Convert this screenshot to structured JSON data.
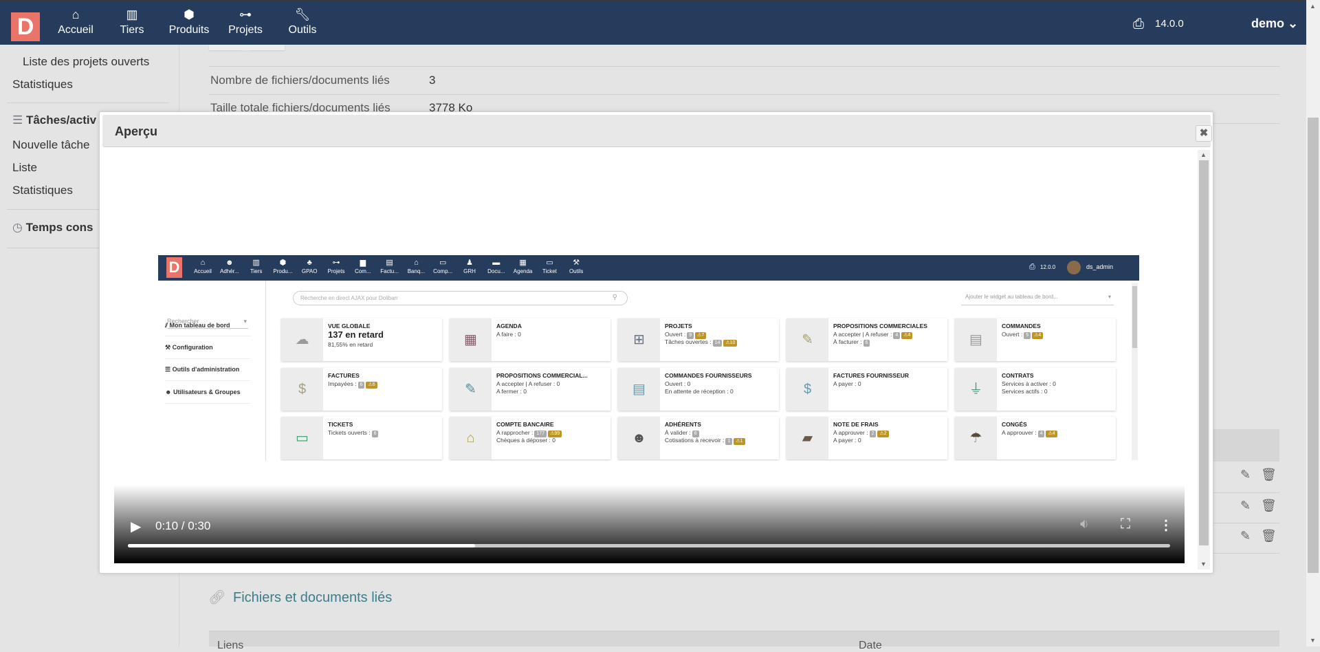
{
  "topbar": {
    "logo": "D",
    "nav": [
      {
        "label": "Accueil",
        "icon": "home-icon"
      },
      {
        "label": "Tiers",
        "icon": "building-icon"
      },
      {
        "label": "Produits",
        "icon": "cube-icon"
      },
      {
        "label": "Projets",
        "icon": "sitemap-icon",
        "active": true
      },
      {
        "label": "Outils",
        "icon": "wrench-icon"
      }
    ],
    "version": "14.0.0",
    "user": "demo",
    "user_caret": "⌄"
  },
  "sidebar": {
    "items": [
      {
        "label": "Liste des projets ouverts"
      },
      {
        "label": "Statistiques"
      },
      {
        "label": "Tâches/activ",
        "heading": true
      },
      {
        "label": "Nouvelle tâche"
      },
      {
        "label": "Liste"
      },
      {
        "label": "Statistiques"
      },
      {
        "label": "Temps cons",
        "heading": true
      }
    ]
  },
  "main": {
    "fields": [
      {
        "label": "Nombre de fichiers/documents liés",
        "value": "3"
      },
      {
        "label": "Taille totale fichiers/documents liés",
        "value": "3778 Ko"
      }
    ],
    "linked_section_title": "Fichiers et documents liés",
    "table_headers": [
      "Liens",
      "Date"
    ]
  },
  "modal": {
    "title": "Aperçu",
    "close_icon": "✖",
    "video": {
      "current_time": "0:10",
      "duration": "0:30",
      "time_display": "0:10 / 0:30",
      "progress_fraction": 0.333
    },
    "frame": {
      "logo": "D",
      "nav": [
        "Accueil",
        "Adhér...",
        "Tiers",
        "Produ...",
        "GPAO",
        "Projets",
        "Com...",
        "Factu...",
        "Banq...",
        "Comp...",
        "GRH",
        "Docu...",
        "Agenda",
        "Ticket",
        "Outils"
      ],
      "version": "12.0.0",
      "user": "ds_admin",
      "search_placeholder": "Rechercher",
      "ajax_placeholder": "Recherche en direct AJAX pour Dolibarr",
      "widget_placeholder": "Ajouter le widget au tableau de bord...",
      "menu": [
        "Mon tableau de bord",
        "Configuration",
        "Outils d'administration",
        "Utilisateurs & Groupes"
      ],
      "cards": [
        {
          "title": "VUE GLOBALE",
          "icon": "☁",
          "color": "#9a9a9a",
          "big": "137 en retard",
          "lines": [
            {
              "text": "81,55% en retard"
            }
          ]
        },
        {
          "title": "AGENDA",
          "icon": "▦",
          "color": "#8a5a6a",
          "lines": [
            {
              "text": "A faire : 0"
            }
          ]
        },
        {
          "title": "PROJETS",
          "icon": "⊞",
          "color": "#66708a",
          "lines": [
            {
              "text": "Ouvert :",
              "badges": [
                {
                  "v": "9"
                },
                {
                  "v": "⚠7",
                  "warn": true
                }
              ]
            },
            {
              "text": "Tâches ouvertes :",
              "badges": [
                {
                  "v": "14"
                },
                {
                  "v": "⚠10",
                  "warn": true
                }
              ]
            }
          ]
        },
        {
          "title": "PROPOSITIONS COMMERCIALES",
          "icon": "✎",
          "color": "#a89e70",
          "lines": [
            {
              "text": "A accepter | A refuser :",
              "badges": [
                {
                  "v": "4"
                },
                {
                  "v": "⚠4",
                  "warn": true
                }
              ]
            },
            {
              "text": "À facturer :",
              "badges": [
                {
                  "v": "6"
                }
              ]
            }
          ]
        },
        {
          "title": "COMMANDES",
          "icon": "▤",
          "color": "#999999",
          "lines": [
            {
              "text": "Ouvert :",
              "badges": [
                {
                  "v": "5"
                },
                {
                  "v": "⚠4",
                  "warn": true
                }
              ]
            }
          ]
        },
        {
          "title": "FACTURES",
          "icon": "$",
          "color": "#a8a080",
          "lines": [
            {
              "text": "Impayées :",
              "badges": [
                {
                  "v": "6"
                },
                {
                  "v": "⚠6",
                  "warn": true
                }
              ]
            }
          ]
        },
        {
          "title": "PROPOSITIONS COMMERCIAL...",
          "icon": "✎",
          "color": "#5a8a9a",
          "lines": [
            {
              "text": "A accepter | A refuser : 0"
            },
            {
              "text": "A fermer : 0"
            }
          ]
        },
        {
          "title": "COMMANDES FOURNISSEURS",
          "icon": "▤",
          "color": "#6a9aa8",
          "lines": [
            {
              "text": "Ouvert : 0"
            },
            {
              "text": "En attente de réception : 0"
            }
          ]
        },
        {
          "title": "FACTURES FOURNISSEUR",
          "icon": "$",
          "color": "#6a9aa8",
          "lines": [
            {
              "text": "A payer : 0"
            }
          ]
        },
        {
          "title": "CONTRATS",
          "icon": "⏚",
          "color": "#4a9a7a",
          "lines": [
            {
              "text": "Services à activer : 0"
            },
            {
              "text": "Services actifs : 0"
            }
          ]
        },
        {
          "title": "TICKETS",
          "icon": "▭",
          "color": "#3a9a6a",
          "lines": [
            {
              "text": "Tickets ouverts :",
              "badges": [
                {
                  "v": "6"
                }
              ]
            }
          ]
        },
        {
          "title": "COMPTE BANCAIRE",
          "icon": "⌂",
          "color": "#a8a050",
          "lines": [
            {
              "text": "A rapprocher :",
              "badges": [
                {
                  "v": "177"
                },
                {
                  "v": "⚠99",
                  "warn": true
                }
              ]
            },
            {
              "text": "Chèques à déposer : 0"
            }
          ]
        },
        {
          "title": "ADHÉRENTS",
          "icon": "☻",
          "color": "#555555",
          "lines": [
            {
              "text": "À valider :",
              "badges": [
                {
                  "v": "6"
                }
              ]
            },
            {
              "text": "Cotisations à recevoir :",
              "badges": [
                {
                  "v": "1"
                },
                {
                  "v": "⚠1",
                  "warn": true
                }
              ]
            }
          ]
        },
        {
          "title": "NOTE DE FRAIS",
          "icon": "▰",
          "color": "#6a5a4a",
          "lines": [
            {
              "text": "A approuver :",
              "badges": [
                {
                  "v": "2"
                },
                {
                  "v": "⚠2",
                  "warn": true
                }
              ]
            },
            {
              "text": "A payer : 0"
            }
          ]
        },
        {
          "title": "CONGÉS",
          "icon": "☂",
          "color": "#5a4a3a",
          "lines": [
            {
              "text": "A approuver :",
              "badges": [
                {
                  "v": "4"
                },
                {
                  "v": "⚠4",
                  "warn": true
                }
              ]
            }
          ]
        }
      ]
    }
  },
  "colors": {
    "topbar": "#263c5c",
    "logo": "#e9746a",
    "link": "#3c7d8a",
    "warning_badge": "#bc9526",
    "annotation": "#e0141e"
  }
}
